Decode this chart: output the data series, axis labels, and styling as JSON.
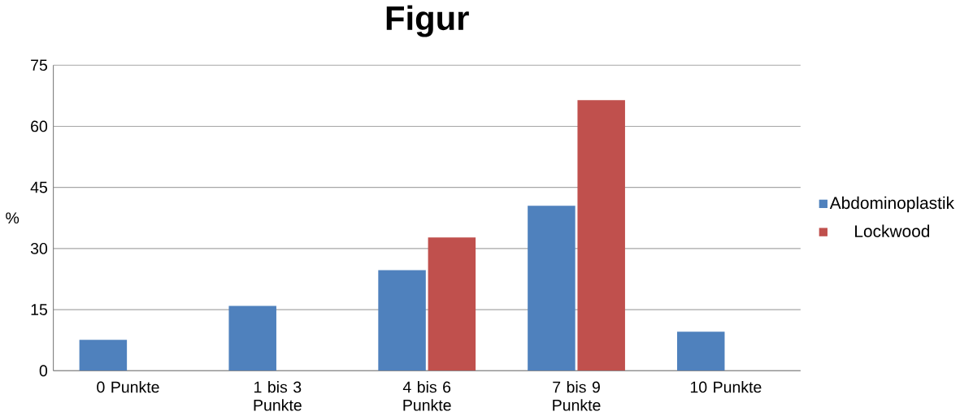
{
  "chart_data": {
    "type": "bar",
    "title": "Figur",
    "ylabel": "%",
    "categories": [
      "0 Punkte",
      "1 bis 3 Punkte",
      "4 bis 6 Punkte",
      "7 bis 9 Punkte",
      "10 Punkte"
    ],
    "series": [
      {
        "name": "Abdominoplastik",
        "color": "#4f81bd",
        "values": [
          7.6,
          15.9,
          24.7,
          40.5,
          9.6
        ]
      },
      {
        "name": "Lockwood",
        "color": "#c0504d",
        "values": [
          0,
          0,
          32.7,
          66.4,
          0
        ]
      }
    ],
    "ylim": [
      0,
      75
    ],
    "yticks": [
      0,
      15,
      30,
      45,
      60,
      75
    ],
    "grid": "y",
    "legend": "right"
  }
}
